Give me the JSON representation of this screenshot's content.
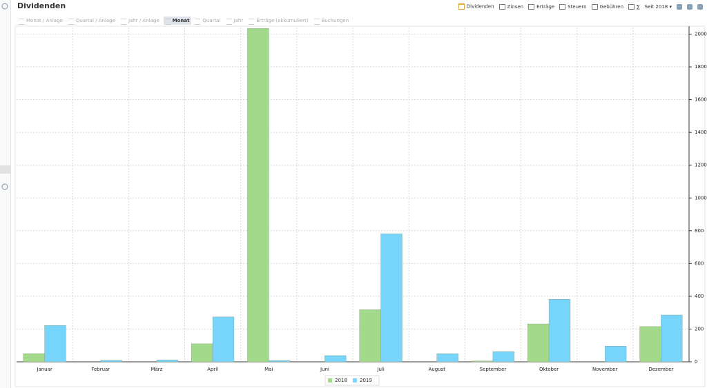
{
  "header": {
    "title": "Dividenden"
  },
  "toolbar": {
    "filters": [
      "Dividenden",
      "Zinsen",
      "Erträge",
      "Steuern",
      "Gebühren",
      "∑"
    ],
    "period": "Seit 2018"
  },
  "tabs": [
    "Monat / Anlage",
    "Quartal / Anlage",
    "Jahr / Anlage",
    "Monat",
    "Quartal",
    "Jahr",
    "Erträge (akkumuliert)",
    "Buchungen"
  ],
  "chart_data": {
    "type": "bar",
    "categories": [
      "Januar",
      "Februar",
      "März",
      "April",
      "Mai",
      "Juni",
      "Juli",
      "August",
      "September",
      "Oktober",
      "November",
      "Dezember"
    ],
    "series": [
      {
        "name": "2018",
        "color": "#a3d98a",
        "values": [
          50,
          0,
          0,
          110,
          2035,
          0,
          318,
          0,
          5,
          231,
          0,
          215
        ]
      },
      {
        "name": "2019",
        "color": "#77d5fb",
        "values": [
          222,
          10,
          12,
          274,
          8,
          38,
          782,
          50,
          62,
          382,
          96,
          286
        ]
      }
    ],
    "ylim": [
      0,
      2040
    ],
    "yticks": [
      0,
      200,
      400,
      600,
      800,
      1000,
      1200,
      1400,
      1600,
      1800,
      2000
    ],
    "grid": true,
    "legend": "bottom"
  }
}
